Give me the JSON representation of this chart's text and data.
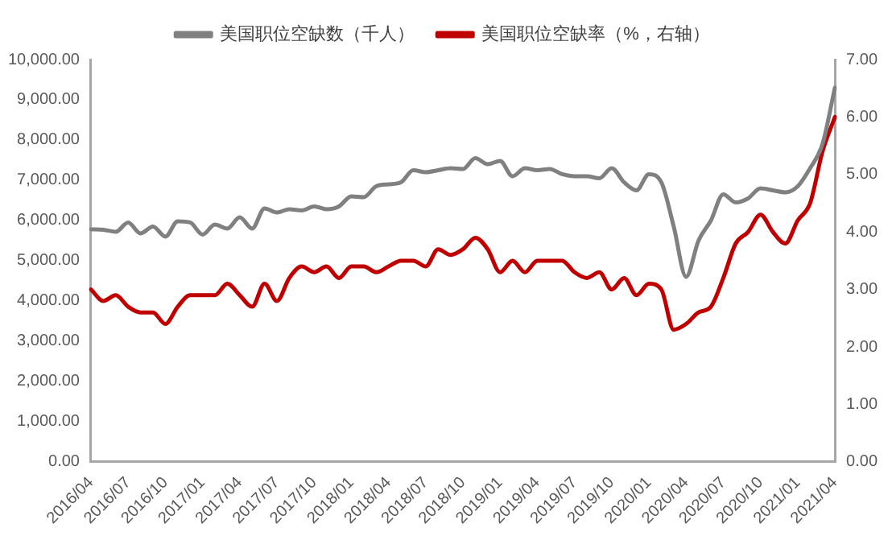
{
  "chart_data": {
    "type": "line",
    "categories": [
      "2016/04",
      null,
      null,
      "2016/07",
      null,
      null,
      "2016/10",
      null,
      null,
      "2017/01",
      null,
      null,
      "2017/04",
      null,
      null,
      "2017/07",
      null,
      null,
      "2017/10",
      null,
      null,
      "2018/01",
      null,
      null,
      "2018/04",
      null,
      null,
      "2018/07",
      null,
      null,
      "2018/10",
      null,
      null,
      "2019/01",
      null,
      null,
      "2019/04",
      null,
      null,
      "2019/07",
      null,
      null,
      "2019/10",
      null,
      null,
      "2020/01",
      null,
      null,
      "2020/04",
      null,
      null,
      "2020/07",
      null,
      null,
      "2020/10",
      null,
      null,
      "2021/01",
      null,
      null,
      "2021/04"
    ],
    "series": [
      {
        "name": "美国职位空缺数（千人）",
        "color": "#808080",
        "values": [
          5780,
          5770,
          5720,
          5950,
          5680,
          5850,
          5600,
          5980,
          5950,
          5650,
          5900,
          5800,
          6080,
          5800,
          6300,
          6200,
          6280,
          6250,
          6350,
          6280,
          6350,
          6600,
          6580,
          6850,
          6900,
          6950,
          7250,
          7200,
          7250,
          7300,
          7280,
          7550,
          7400,
          7480,
          7100,
          7300,
          7250,
          7280,
          7150,
          7100,
          7100,
          7050,
          7300,
          6950,
          6750,
          7150,
          6950,
          5850,
          4600,
          5500,
          6000,
          6650,
          6450,
          6550,
          6800,
          6750,
          6700,
          6850,
          7300,
          7900,
          9300
        ]
      },
      {
        "name": "美国职位空缺率（%，右轴）",
        "color": "#c00000",
        "axis": "y2",
        "values": [
          3.0,
          2.8,
          2.9,
          2.7,
          2.6,
          2.6,
          2.4,
          2.7,
          2.9,
          2.9,
          2.9,
          3.1,
          2.9,
          2.7,
          3.1,
          2.8,
          3.2,
          3.4,
          3.3,
          3.4,
          3.2,
          3.4,
          3.4,
          3.3,
          3.4,
          3.5,
          3.5,
          3.4,
          3.7,
          3.6,
          3.7,
          3.9,
          3.7,
          3.3,
          3.5,
          3.3,
          3.5,
          3.5,
          3.5,
          3.3,
          3.2,
          3.3,
          3.0,
          3.2,
          2.9,
          3.1,
          3.0,
          2.3,
          2.4,
          2.6,
          2.7,
          3.2,
          3.8,
          4.0,
          4.3,
          4.0,
          3.8,
          4.2,
          4.5,
          5.4,
          6.0
        ]
      }
    ],
    "ylim": [
      0,
      10000
    ],
    "yticks": [
      {
        "value": 0,
        "label": "0.00"
      },
      {
        "value": 1000,
        "label": "1,000.00"
      },
      {
        "value": 2000,
        "label": "2,000.00"
      },
      {
        "value": 3000,
        "label": "3,000.00"
      },
      {
        "value": 4000,
        "label": "4,000.00"
      },
      {
        "value": 5000,
        "label": "5,000.00"
      },
      {
        "value": 6000,
        "label": "6,000.00"
      },
      {
        "value": 7000,
        "label": "7,000.00"
      },
      {
        "value": 8000,
        "label": "8,000.00"
      },
      {
        "value": 9000,
        "label": "9,000.00"
      },
      {
        "value": 10000,
        "label": "10,000.00"
      }
    ],
    "y2lim": [
      0,
      7
    ],
    "y2ticks": [
      {
        "value": 0,
        "label": "0.00"
      },
      {
        "value": 1,
        "label": "1.00"
      },
      {
        "value": 2,
        "label": "2.00"
      },
      {
        "value": 3,
        "label": "3.00"
      },
      {
        "value": 4,
        "label": "4.00"
      },
      {
        "value": 5,
        "label": "5.00"
      },
      {
        "value": 6,
        "label": "6.00"
      },
      {
        "value": 7,
        "label": "7.00"
      }
    ],
    "grid": false,
    "legend": "top",
    "marker": "none",
    "line_style": "solid"
  }
}
